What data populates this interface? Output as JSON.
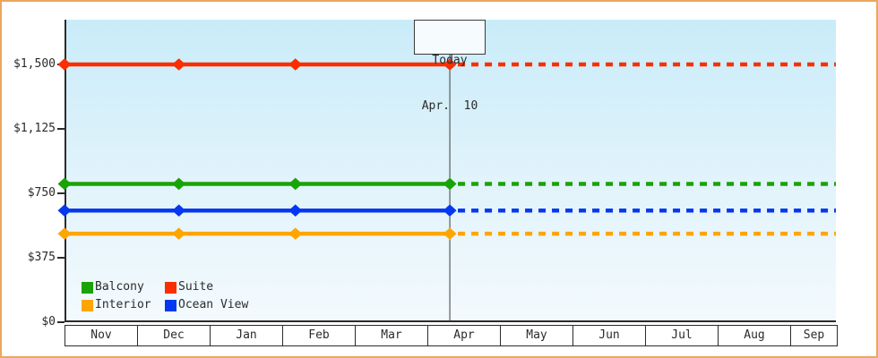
{
  "frame": {
    "border_color": "#eaa75e",
    "background": "#ffffff"
  },
  "plot": {
    "axis_color": "#2b2b2b",
    "bg_gradient_top": "#c9ecf9",
    "bg_gradient_bottom": "#f3fafd"
  },
  "today_annotation": {
    "line1": "Today",
    "line2": "Apr.  10"
  },
  "chart_data": {
    "type": "line",
    "title": "",
    "x_axis": {
      "months": [
        "Nov",
        "Dec",
        "Jan",
        "Feb",
        "Mar",
        "Apr",
        "May",
        "Jun",
        "Jul",
        "Aug",
        "Sep"
      ],
      "note": "timeline runs Nov 1 through mid-September; Sep cell truncated at plot edge"
    },
    "y_axis": {
      "range": [
        0,
        1500
      ],
      "ticks": [
        {
          "label": "$0",
          "value": 0
        },
        {
          "label": "$375",
          "value": 375
        },
        {
          "label": "$750",
          "value": 750
        },
        {
          "label": "$1,125",
          "value": 1125
        },
        {
          "label": "$1,500",
          "value": 1500
        }
      ]
    },
    "today": {
      "label": "Today",
      "date": "Apr. 10",
      "month_offset_from_nov": 5.29
    },
    "series": [
      {
        "name": "Suite",
        "color": "#fb2e01",
        "price": 1500,
        "trend": "flat"
      },
      {
        "name": "Balcony",
        "color": "#18a306",
        "price": 805,
        "trend": "flat"
      },
      {
        "name": "Ocean View",
        "color": "#0438f0",
        "price": 650,
        "trend": "flat"
      },
      {
        "name": "Interior",
        "color": "#ffa500",
        "price": 515,
        "trend": "flat"
      }
    ],
    "marker_month_offsets": [
      0,
      1.57,
      3.17,
      5.29
    ],
    "style": {
      "solid_line_before_today": true,
      "dashed_projection_after_today": true,
      "marker_shape": "diamond",
      "today_line_color": "#3c3c3c"
    },
    "legend": {
      "order": [
        "Balcony",
        "Suite",
        "Interior",
        "Ocean View"
      ],
      "position": "inside-bottom-left"
    }
  }
}
